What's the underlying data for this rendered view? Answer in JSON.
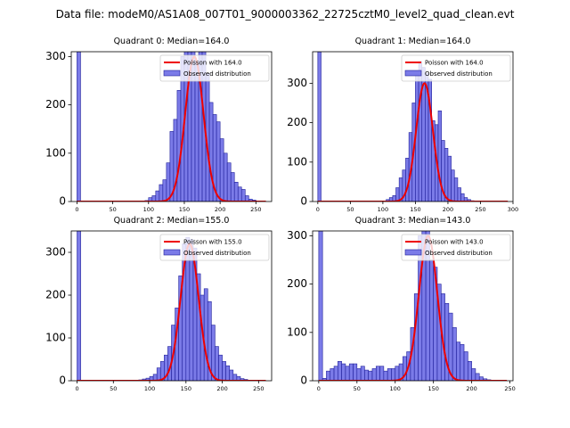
{
  "title": "Data file: modeM0/AS1A08_007T01_9000003362_22725cztM0_level2_quad_clean.evt",
  "colors": {
    "bar_fill": "#7b7be8",
    "bar_edge": "#1f1f9a",
    "curve": "#ee0000"
  },
  "chart_data": [
    {
      "type": "bar",
      "title": "Quadrant 0: Median=164.0",
      "legend": [
        "Poisson with 164.0",
        "Observed distribution"
      ],
      "legend_position": "top-right",
      "xlim": [
        -8,
        272
      ],
      "ylim": [
        0,
        310
      ],
      "xticks": [
        0,
        50,
        100,
        150,
        200,
        250
      ],
      "yticks": [
        0,
        100,
        200,
        300
      ],
      "bin_width": 5,
      "bins": [
        [
          0,
          310
        ],
        [
          95,
          2
        ],
        [
          100,
          8
        ],
        [
          105,
          12
        ],
        [
          110,
          22
        ],
        [
          115,
          35
        ],
        [
          120,
          45
        ],
        [
          125,
          80
        ],
        [
          130,
          145
        ],
        [
          135,
          170
        ],
        [
          140,
          230
        ],
        [
          145,
          300
        ],
        [
          150,
          340
        ],
        [
          155,
          335
        ],
        [
          160,
          345
        ],
        [
          165,
          290
        ],
        [
          170,
          335
        ],
        [
          175,
          320
        ],
        [
          180,
          265
        ],
        [
          185,
          205
        ],
        [
          190,
          180
        ],
        [
          195,
          165
        ],
        [
          200,
          130
        ],
        [
          205,
          100
        ],
        [
          210,
          80
        ],
        [
          215,
          60
        ],
        [
          220,
          40
        ],
        [
          225,
          30
        ],
        [
          230,
          25
        ],
        [
          235,
          12
        ],
        [
          240,
          5
        ],
        [
          245,
          3
        ]
      ],
      "poisson_mean": 164.0,
      "poisson_peak": 300
    },
    {
      "type": "bar",
      "title": "Quadrant 1: Median=164.0",
      "legend": [
        "Poisson with 164.0",
        "Observed distribution"
      ],
      "legend_position": "top-right",
      "xlim": [
        -8,
        300
      ],
      "ylim": [
        0,
        380
      ],
      "xticks": [
        0,
        50,
        100,
        150,
        200,
        250,
        300
      ],
      "yticks": [
        0,
        100,
        200,
        300
      ],
      "bin_width": 5,
      "bins": [
        [
          0,
          380
        ],
        [
          105,
          5
        ],
        [
          110,
          10
        ],
        [
          115,
          15
        ],
        [
          120,
          35
        ],
        [
          125,
          60
        ],
        [
          130,
          80
        ],
        [
          135,
          110
        ],
        [
          140,
          175
        ],
        [
          145,
          250
        ],
        [
          150,
          325
        ],
        [
          155,
          355
        ],
        [
          160,
          340
        ],
        [
          165,
          325
        ],
        [
          170,
          310
        ],
        [
          175,
          205
        ],
        [
          180,
          195
        ],
        [
          185,
          230
        ],
        [
          190,
          155
        ],
        [
          195,
          135
        ],
        [
          200,
          115
        ],
        [
          205,
          80
        ],
        [
          210,
          60
        ],
        [
          215,
          35
        ],
        [
          220,
          20
        ],
        [
          225,
          10
        ],
        [
          230,
          5
        ],
        [
          235,
          2
        ]
      ],
      "poisson_mean": 164.0,
      "poisson_peak": 300
    },
    {
      "type": "bar",
      "title": "Quadrant 2: Median=155.0",
      "legend": [
        "Poisson with 155.0",
        "Observed distribution"
      ],
      "legend_position": "top-right",
      "xlim": [
        -8,
        268
      ],
      "ylim": [
        0,
        350
      ],
      "xticks": [
        0,
        50,
        100,
        150,
        200,
        250
      ],
      "yticks": [
        0,
        100,
        200,
        300
      ],
      "bin_width": 5,
      "bins": [
        [
          0,
          350
        ],
        [
          85,
          2
        ],
        [
          90,
          4
        ],
        [
          95,
          6
        ],
        [
          100,
          10
        ],
        [
          105,
          15
        ],
        [
          110,
          30
        ],
        [
          115,
          45
        ],
        [
          120,
          60
        ],
        [
          125,
          80
        ],
        [
          130,
          130
        ],
        [
          135,
          170
        ],
        [
          140,
          245
        ],
        [
          145,
          320
        ],
        [
          150,
          335
        ],
        [
          155,
          330
        ],
        [
          160,
          310
        ],
        [
          165,
          250
        ],
        [
          170,
          200
        ],
        [
          175,
          215
        ],
        [
          180,
          185
        ],
        [
          185,
          130
        ],
        [
          190,
          80
        ],
        [
          195,
          60
        ],
        [
          200,
          45
        ],
        [
          205,
          35
        ],
        [
          210,
          25
        ],
        [
          215,
          15
        ],
        [
          220,
          10
        ],
        [
          225,
          5
        ],
        [
          230,
          3
        ]
      ],
      "poisson_mean": 155.0,
      "poisson_peak": 320
    },
    {
      "type": "bar",
      "title": "Quadrant 3: Median=143.0",
      "legend": [
        "Poisson with 143.0",
        "Observed distribution"
      ],
      "legend_position": "top-right",
      "xlim": [
        -8,
        254
      ],
      "ylim": [
        0,
        310
      ],
      "xticks": [
        0,
        50,
        100,
        150,
        200,
        250
      ],
      "yticks": [
        0,
        100,
        200,
        300
      ],
      "bin_width": 5,
      "bins": [
        [
          0,
          310
        ],
        [
          5,
          5
        ],
        [
          10,
          20
        ],
        [
          15,
          25
        ],
        [
          20,
          30
        ],
        [
          25,
          40
        ],
        [
          30,
          35
        ],
        [
          35,
          30
        ],
        [
          40,
          35
        ],
        [
          45,
          35
        ],
        [
          50,
          25
        ],
        [
          55,
          30
        ],
        [
          60,
          22
        ],
        [
          65,
          20
        ],
        [
          70,
          25
        ],
        [
          75,
          30
        ],
        [
          80,
          30
        ],
        [
          85,
          20
        ],
        [
          90,
          25
        ],
        [
          95,
          25
        ],
        [
          100,
          30
        ],
        [
          105,
          35
        ],
        [
          110,
          50
        ],
        [
          115,
          60
        ],
        [
          120,
          110
        ],
        [
          125,
          180
        ],
        [
          130,
          300
        ],
        [
          135,
          335
        ],
        [
          140,
          340
        ],
        [
          145,
          250
        ],
        [
          150,
          235
        ],
        [
          155,
          200
        ],
        [
          160,
          180
        ],
        [
          165,
          160
        ],
        [
          170,
          140
        ],
        [
          175,
          110
        ],
        [
          180,
          80
        ],
        [
          185,
          75
        ],
        [
          190,
          60
        ],
        [
          195,
          40
        ],
        [
          200,
          25
        ],
        [
          205,
          15
        ],
        [
          210,
          8
        ],
        [
          215,
          4
        ],
        [
          220,
          2
        ]
      ],
      "poisson_mean": 143.0,
      "poisson_peak": 300
    }
  ]
}
